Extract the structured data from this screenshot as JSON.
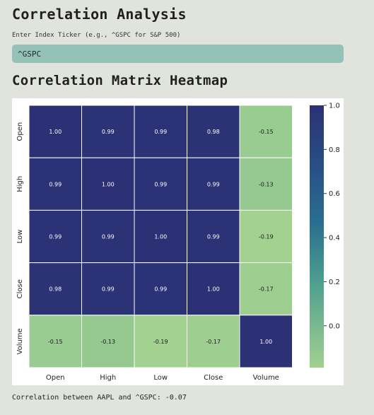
{
  "page": {
    "title": "Correlation Analysis",
    "input_label": "Enter Index Ticker (e.g., ^GSPC for S&P 500)",
    "input_value": "^GSPC",
    "heatmap_heading": "Correlation Matrix Heatmap",
    "result_text": "Correlation between AAPL and ^GSPC: -0.07"
  },
  "colors": {
    "page_bg": "#e1e4dd",
    "input_bg": "#94c2b8",
    "colormap_high": "#2b3174",
    "colormap_mid": "#2a6f8e",
    "colormap_low": "#a2d190"
  },
  "chart_data": {
    "type": "heatmap",
    "rows": [
      "Open",
      "High",
      "Low",
      "Close",
      "Volume"
    ],
    "cols": [
      "Open",
      "High",
      "Low",
      "Close",
      "Volume"
    ],
    "values": [
      [
        1.0,
        0.99,
        0.99,
        0.98,
        -0.15
      ],
      [
        0.99,
        1.0,
        0.99,
        0.99,
        -0.13
      ],
      [
        0.99,
        0.99,
        1.0,
        0.99,
        -0.19
      ],
      [
        0.98,
        0.99,
        0.99,
        1.0,
        -0.17
      ],
      [
        -0.15,
        -0.13,
        -0.19,
        -0.17,
        1.0
      ]
    ],
    "value_labels": [
      [
        "1.00",
        "0.99",
        "0.99",
        "0.98",
        "-0.15"
      ],
      [
        "0.99",
        "1.00",
        "0.99",
        "0.99",
        "-0.13"
      ],
      [
        "0.99",
        "0.99",
        "1.00",
        "0.99",
        "-0.19"
      ],
      [
        "0.98",
        "0.99",
        "0.99",
        "1.00",
        "-0.17"
      ],
      [
        "-0.15",
        "-0.13",
        "-0.19",
        "-0.17",
        "1.00"
      ]
    ],
    "colorbar": {
      "vmin": -0.19,
      "vmax": 1.0,
      "ticks": [
        1.0,
        0.8,
        0.6,
        0.4,
        0.2,
        0.0
      ],
      "tick_labels": [
        "1.0",
        "0.8",
        "0.6",
        "0.4",
        "0.2",
        "0.0"
      ]
    }
  }
}
